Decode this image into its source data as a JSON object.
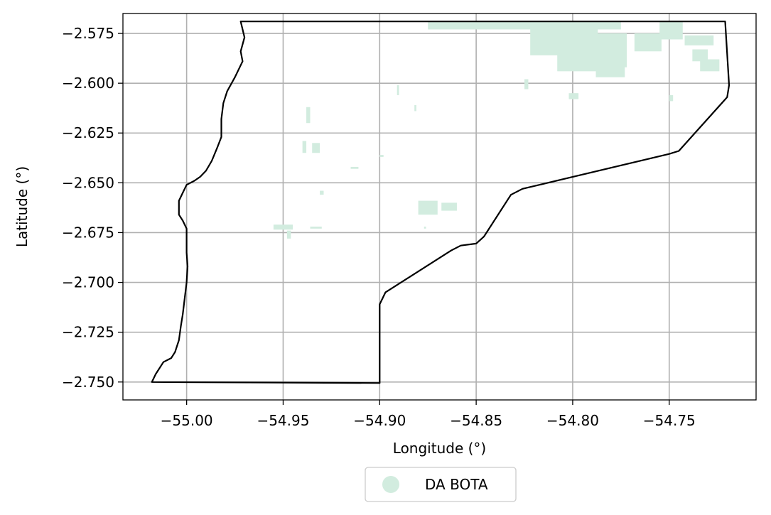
{
  "chart_data": {
    "type": "map",
    "title": "",
    "xlabel": "Longitude (°)",
    "ylabel": "Latitude (°)",
    "xlim": [
      -55.033,
      -54.705
    ],
    "ylim": [
      -2.759,
      -2.565
    ],
    "grid": true,
    "x_ticks": [
      -55.0,
      -54.95,
      -54.9,
      -54.85,
      -54.8,
      -54.75
    ],
    "x_tick_labels": [
      "−55.00",
      "−54.95",
      "−54.90",
      "−54.85",
      "−54.80",
      "−54.75"
    ],
    "y_ticks": [
      -2.575,
      -2.6,
      -2.625,
      -2.65,
      -2.675,
      -2.7,
      -2.725,
      -2.75
    ],
    "y_tick_labels": [
      "−2.575",
      "−2.600",
      "−2.625",
      "−2.650",
      "−2.675",
      "−2.700",
      "−2.725",
      "−2.750"
    ],
    "boundary": [
      [
        -54.972,
        -2.569
      ],
      [
        -54.721,
        -2.569
      ],
      [
        -54.719,
        -2.601
      ],
      [
        -54.72,
        -2.607
      ],
      [
        -54.745,
        -2.634
      ],
      [
        -54.75,
        -2.6355
      ],
      [
        -54.826,
        -2.653
      ],
      [
        -54.832,
        -2.656
      ],
      [
        -54.846,
        -2.677
      ],
      [
        -54.85,
        -2.6805
      ],
      [
        -54.858,
        -2.6815
      ],
      [
        -54.863,
        -2.684
      ],
      [
        -54.897,
        -2.705
      ],
      [
        -54.9,
        -2.711
      ],
      [
        -54.9,
        -2.7505
      ],
      [
        -55.018,
        -2.75
      ],
      [
        -55.016,
        -2.746
      ],
      [
        -55.012,
        -2.74
      ],
      [
        -55.008,
        -2.738
      ],
      [
        -55.006,
        -2.735
      ],
      [
        -55.004,
        -2.729
      ],
      [
        -55.003,
        -2.722
      ],
      [
        -55.002,
        -2.716
      ],
      [
        -55.001,
        -2.708
      ],
      [
        -55.0,
        -2.7
      ],
      [
        -54.9995,
        -2.692
      ],
      [
        -55.0,
        -2.685
      ],
      [
        -55.0,
        -2.673
      ],
      [
        -55.002,
        -2.669
      ],
      [
        -55.004,
        -2.666
      ],
      [
        -55.004,
        -2.663
      ],
      [
        -55.004,
        -2.659
      ],
      [
        -55.002,
        -2.655
      ],
      [
        -55.0,
        -2.651
      ],
      [
        -54.996,
        -2.649
      ],
      [
        -54.993,
        -2.647
      ],
      [
        -54.99,
        -2.644
      ],
      [
        -54.987,
        -2.639
      ],
      [
        -54.984,
        -2.632
      ],
      [
        -54.982,
        -2.627
      ],
      [
        -54.982,
        -2.618
      ],
      [
        -54.981,
        -2.61
      ],
      [
        -54.979,
        -2.604
      ],
      [
        -54.975,
        -2.597
      ],
      [
        -54.971,
        -2.589
      ],
      [
        -54.972,
        -2.584
      ],
      [
        -54.97,
        -2.577
      ],
      [
        -54.972,
        -2.569
      ]
    ],
    "series": [
      {
        "name": "DA BOTA",
        "color": "#d2ecdf",
        "patches": [
          [
            -54.875,
            -2.569,
            0.1,
            0.004
          ],
          [
            -54.822,
            -2.569,
            0.035,
            0.017
          ],
          [
            -54.792,
            -2.575,
            0.02,
            0.017
          ],
          [
            -54.808,
            -2.585,
            0.03,
            0.009
          ],
          [
            -54.788,
            -2.591,
            0.015,
            0.006
          ],
          [
            -54.812,
            -2.576,
            0.014,
            0.009
          ],
          [
            -54.755,
            -2.569,
            0.012,
            0.009
          ],
          [
            -54.768,
            -2.575,
            0.014,
            0.009
          ],
          [
            -54.742,
            -2.576,
            0.015,
            0.005
          ],
          [
            -54.738,
            -2.583,
            0.008,
            0.006
          ],
          [
            -54.734,
            -2.588,
            0.01,
            0.006
          ],
          [
            -54.825,
            -2.598,
            0.002,
            0.005
          ],
          [
            -54.802,
            -2.605,
            0.005,
            0.003
          ],
          [
            -54.75,
            -2.606,
            0.002,
            0.003
          ],
          [
            -54.938,
            -2.612,
            0.002,
            0.008
          ],
          [
            -54.935,
            -2.63,
            0.004,
            0.005
          ],
          [
            -54.94,
            -2.629,
            0.002,
            0.006
          ],
          [
            -54.915,
            -2.642,
            0.004,
            0.001
          ],
          [
            -54.88,
            -2.659,
            0.01,
            0.007
          ],
          [
            -54.868,
            -2.66,
            0.008,
            0.004
          ],
          [
            -54.955,
            -2.671,
            0.01,
            0.0025
          ],
          [
            -54.948,
            -2.674,
            0.002,
            0.004
          ],
          [
            -54.936,
            -2.672,
            0.006,
            0.001
          ],
          [
            -54.9,
            -2.636,
            0.002,
            0.001
          ],
          [
            -54.882,
            -2.611,
            0.001,
            0.003
          ],
          [
            -54.891,
            -2.601,
            0.001,
            0.005
          ],
          [
            -54.931,
            -2.654,
            0.002,
            0.002
          ],
          [
            -54.877,
            -2.672,
            0.001,
            0.001
          ]
        ]
      }
    ],
    "legend": {
      "placement": "bottom-center-outside",
      "entries": [
        {
          "label": "DA BOTA",
          "color": "#d2ecdf",
          "marker": "circle"
        }
      ]
    }
  }
}
